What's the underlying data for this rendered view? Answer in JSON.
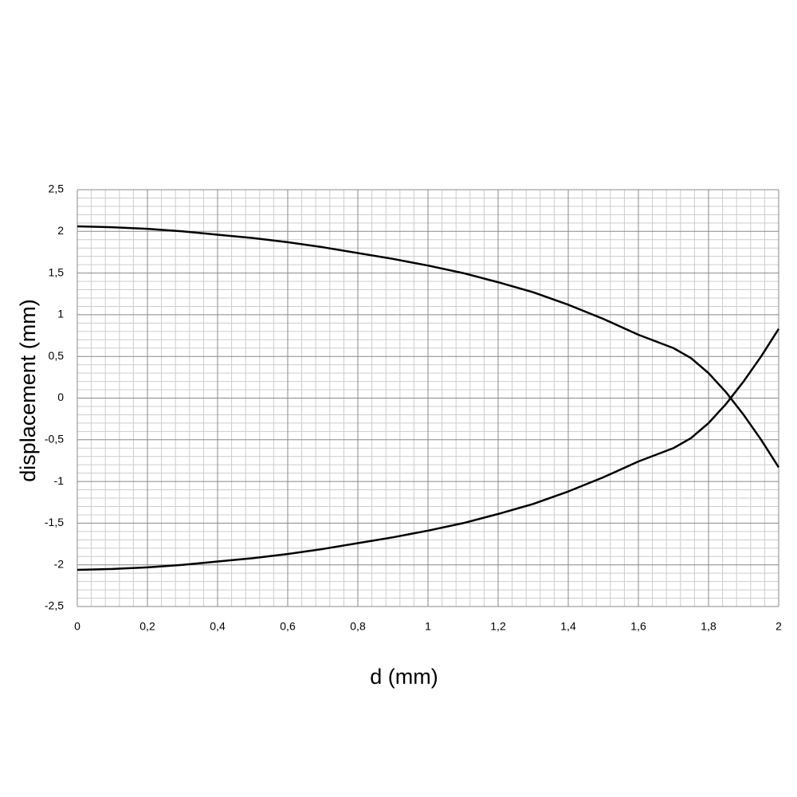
{
  "chart_data": {
    "type": "line",
    "x_label": "d (mm)",
    "y_label": "displacement (mm)",
    "x": [
      0,
      0.1,
      0.2,
      0.3,
      0.4,
      0.5,
      0.6,
      0.7,
      0.8,
      0.9,
      1.0,
      1.1,
      1.2,
      1.3,
      1.4,
      1.5,
      1.6,
      1.7,
      1.75,
      1.8,
      1.85,
      1.9,
      1.95,
      2.0
    ],
    "series": [
      {
        "color": "#000000",
        "values": [
          2.06,
          2.05,
          2.03,
          2.0,
          1.96,
          1.92,
          1.87,
          1.81,
          1.74,
          1.67,
          1.59,
          1.5,
          1.39,
          1.27,
          1.12,
          0.95,
          0.76,
          0.6,
          0.48,
          0.3,
          0.07,
          -0.2,
          -0.5,
          -0.83
        ]
      },
      {
        "color": "#000000",
        "values": [
          -2.06,
          -2.05,
          -2.03,
          -2.0,
          -1.96,
          -1.92,
          -1.87,
          -1.81,
          -1.74,
          -1.67,
          -1.59,
          -1.5,
          -1.39,
          -1.27,
          -1.12,
          -0.95,
          -0.76,
          -0.6,
          -0.48,
          -0.3,
          -0.07,
          0.2,
          0.5,
          0.83
        ]
      }
    ],
    "xlim": [
      0,
      2
    ],
    "xticks": [
      0,
      {
        "value": 0.2,
        "label": "0,2"
      },
      {
        "value": 0.4,
        "label": "0,4"
      },
      {
        "value": 0.6,
        "label": "0,6"
      },
      {
        "value": 0.8,
        "label": "0,8"
      },
      1,
      {
        "value": 1.2,
        "label": "1,2"
      },
      {
        "value": 1.4,
        "label": "1,4"
      },
      {
        "value": 1.6,
        "label": "1,6"
      },
      {
        "value": 1.8,
        "label": "1,8"
      },
      2
    ],
    "ylim": [
      -2.5,
      2.5
    ],
    "yticks": [
      {
        "value": -2.5,
        "label": "-2,5"
      },
      -2,
      {
        "value": -1.5,
        "label": "-1,5"
      },
      -1,
      {
        "value": -0.5,
        "label": "-0,5"
      },
      0,
      {
        "value": 0.5,
        "label": "0,5"
      },
      1,
      {
        "value": 1.5,
        "label": "1,5"
      },
      2,
      {
        "value": 2.5,
        "label": "2,5"
      }
    ],
    "grid": true,
    "minor_grid": true
  }
}
